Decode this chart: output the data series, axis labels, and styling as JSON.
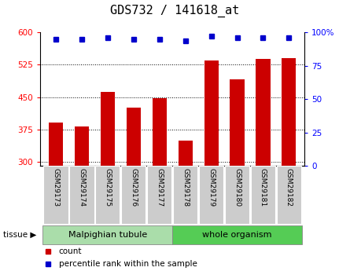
{
  "title": "GDS732 / 141618_at",
  "categories": [
    "GSM29173",
    "GSM29174",
    "GSM29175",
    "GSM29176",
    "GSM29177",
    "GSM29178",
    "GSM29179",
    "GSM29180",
    "GSM29181",
    "GSM29182"
  ],
  "bar_values": [
    390,
    382,
    462,
    425,
    447,
    348,
    535,
    492,
    538,
    540
  ],
  "percentile_values": [
    95,
    95,
    96,
    95,
    95,
    94,
    97,
    96,
    96,
    96
  ],
  "bar_color": "#cc0000",
  "dot_color": "#0000cc",
  "ylim_left": [
    290,
    600
  ],
  "ylim_right": [
    0,
    100
  ],
  "yticks_left": [
    300,
    375,
    450,
    525,
    600
  ],
  "yticks_right": [
    0,
    25,
    50,
    75,
    100
  ],
  "group1_label": "Malpighian tubule",
  "group1_count": 5,
  "group2_label": "whole organism",
  "group2_count": 5,
  "tissue_label": "tissue",
  "legend_count_label": "count",
  "legend_pct_label": "percentile rank within the sample",
  "group1_color": "#aaddaa",
  "group2_color": "#55cc55",
  "tick_bg_color": "#cccccc",
  "title_fontsize": 11,
  "tick_fontsize": 7.5,
  "label_fontsize": 6.5,
  "tissue_fontsize": 8,
  "legend_fontsize": 7.5
}
